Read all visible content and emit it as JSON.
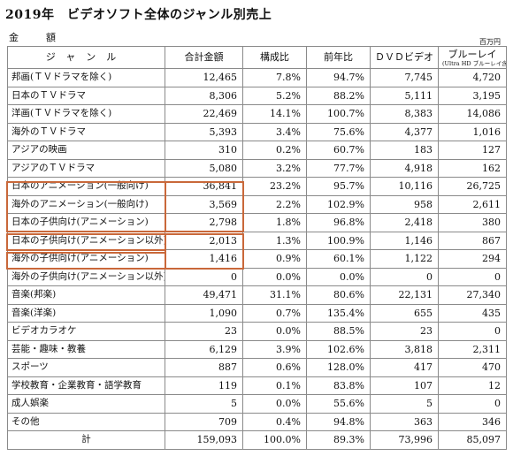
{
  "title": "2019年　ビデオソフト全体のジャンル別売上",
  "amount_label": "金　額",
  "unit": "百万円",
  "headers": {
    "genre": "ジャンル",
    "total": "合計金額",
    "share": "構成比",
    "yoy": "前年比",
    "dvd": "ＤＶＤビデオ",
    "bd": "ブルーレイ",
    "bd_note": "(Ultra HD ブルーレイ含)"
  },
  "rows": [
    {
      "genre": "邦画(ＴＶドラマを除く)",
      "total": "12,465",
      "share": "7.8%",
      "yoy": "94.7%",
      "dvd": "7,745",
      "bd": "4,720"
    },
    {
      "genre": "日本のＴＶドラマ",
      "total": "8,306",
      "share": "5.2%",
      "yoy": "88.2%",
      "dvd": "5,111",
      "bd": "3,195"
    },
    {
      "genre": "洋画(ＴＶドラマを除く)",
      "total": "22,469",
      "share": "14.1%",
      "yoy": "100.7%",
      "dvd": "8,383",
      "bd": "14,086"
    },
    {
      "genre": "海外のＴＶドラマ",
      "total": "5,393",
      "share": "3.4%",
      "yoy": "75.6%",
      "dvd": "4,377",
      "bd": "1,016"
    },
    {
      "genre": "アジアの映画",
      "total": "310",
      "share": "0.2%",
      "yoy": "60.7%",
      "dvd": "183",
      "bd": "127"
    },
    {
      "genre": "アジアのＴＶドラマ",
      "total": "5,080",
      "share": "3.2%",
      "yoy": "77.7%",
      "dvd": "4,918",
      "bd": "162"
    },
    {
      "genre": "日本のアニメーション(一般向け)",
      "total": "36,841",
      "share": "23.2%",
      "yoy": "95.7%",
      "dvd": "10,116",
      "bd": "26,725"
    },
    {
      "genre": "海外のアニメーション(一般向け)",
      "total": "3,569",
      "share": "2.2%",
      "yoy": "102.9%",
      "dvd": "958",
      "bd": "2,611"
    },
    {
      "genre": "日本の子供向け(アニメーション)",
      "total": "2,798",
      "share": "1.8%",
      "yoy": "96.8%",
      "dvd": "2,418",
      "bd": "380"
    },
    {
      "genre": "日本の子供向け(アニメーション以外)",
      "total": "2,013",
      "share": "1.3%",
      "yoy": "100.9%",
      "dvd": "1,146",
      "bd": "867"
    },
    {
      "genre": "海外の子供向け(アニメーション)",
      "total": "1,416",
      "share": "0.9%",
      "yoy": "60.1%",
      "dvd": "1,122",
      "bd": "294"
    },
    {
      "genre": "海外の子供向け(アニメーション以外)",
      "total": "0",
      "share": "0.0%",
      "yoy": "0.0%",
      "dvd": "0",
      "bd": "0"
    },
    {
      "genre": "音楽(邦楽)",
      "total": "49,471",
      "share": "31.1%",
      "yoy": "80.6%",
      "dvd": "22,131",
      "bd": "27,340"
    },
    {
      "genre": "音楽(洋楽)",
      "total": "1,090",
      "share": "0.7%",
      "yoy": "135.4%",
      "dvd": "655",
      "bd": "435"
    },
    {
      "genre": "ビデオカラオケ",
      "total": "23",
      "share": "0.0%",
      "yoy": "88.5%",
      "dvd": "23",
      "bd": "0"
    },
    {
      "genre": "芸能・趣味・教養",
      "total": "6,129",
      "share": "3.9%",
      "yoy": "102.6%",
      "dvd": "3,818",
      "bd": "2,311"
    },
    {
      "genre": "スポーツ",
      "total": "887",
      "share": "0.6%",
      "yoy": "128.0%",
      "dvd": "417",
      "bd": "470"
    },
    {
      "genre": "学校教育・企業教育・語学教育",
      "total": "119",
      "share": "0.1%",
      "yoy": "83.8%",
      "dvd": "107",
      "bd": "12"
    },
    {
      "genre": "成人娯楽",
      "total": "5",
      "share": "0.0%",
      "yoy": "55.6%",
      "dvd": "5",
      "bd": "0"
    },
    {
      "genre": "その他",
      "total": "709",
      "share": "0.4%",
      "yoy": "94.8%",
      "dvd": "363",
      "bd": "346"
    }
  ],
  "total_row": {
    "genre": "計",
    "total": "159,093",
    "share": "100.0%",
    "yoy": "89.3%",
    "dvd": "73,996",
    "bd": "85,097"
  },
  "highlight_color": "#c9683a"
}
